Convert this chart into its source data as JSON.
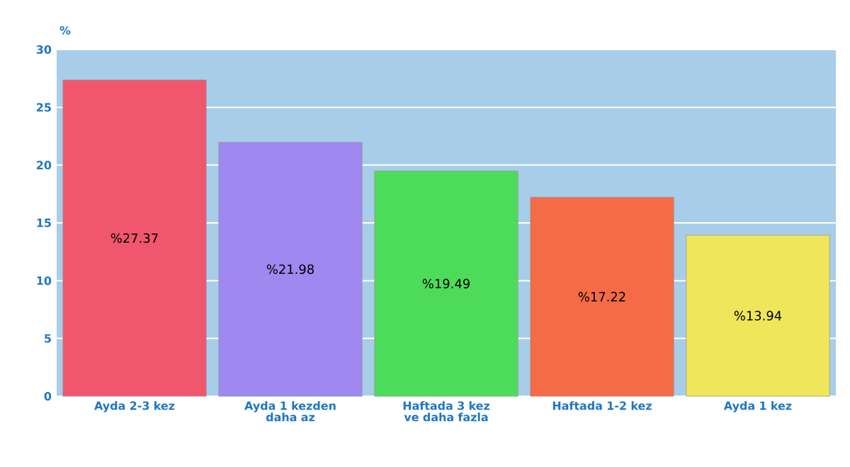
{
  "chart_data": {
    "type": "bar",
    "ylabel": "%",
    "categories": [
      "Ayda 2-3 kez",
      "Ayda 1 kezden daha az",
      "Haftada 3 kez ve daha fazla",
      "Haftada 1-2 kez",
      "Ayda 1 kez"
    ],
    "values": [
      27.37,
      21.98,
      19.49,
      17.22,
      13.94
    ],
    "colors": [
      "#f0566e",
      "#9f88f0",
      "#4ddc5a",
      "#f56b45",
      "#f0e65a"
    ],
    "value_labels": [
      "%27.37",
      "%21.98",
      "%19.49",
      "%17.22",
      "%13.94"
    ],
    "ylim": [
      0,
      30
    ],
    "yticks": [
      0,
      5,
      10,
      15,
      20,
      25,
      30
    ],
    "grid": "y"
  }
}
